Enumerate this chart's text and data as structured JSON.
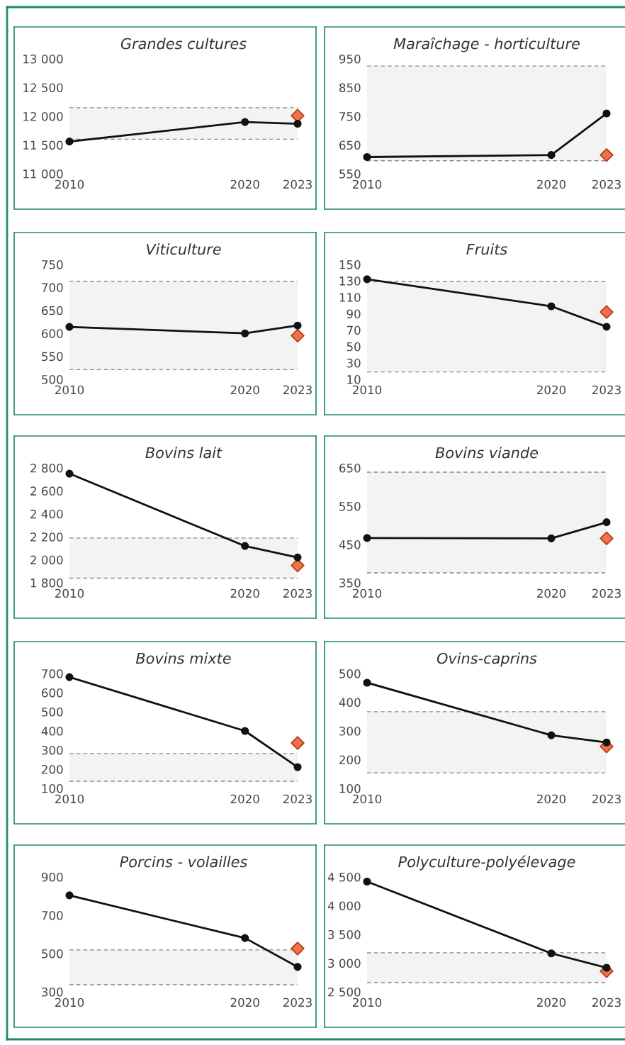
{
  "chart_data": [
    {
      "type": "line",
      "title": "Grandes cultures",
      "xticks": [
        2010,
        2020,
        2023
      ],
      "xlim": [
        2010,
        2023
      ],
      "ylim": [
        11000,
        13000
      ],
      "yticks": [
        {
          "value": 11000,
          "label": "11 000"
        },
        {
          "value": 11500,
          "label": "11 500"
        },
        {
          "value": 12000,
          "label": "12 000"
        },
        {
          "value": 12500,
          "label": "12 500"
        },
        {
          "value": 13000,
          "label": "13 000"
        }
      ],
      "series": [
        {
          "color": "#111111",
          "marker": "circle",
          "x": [
            2010,
            2020,
            2023
          ],
          "values": [
            11560,
            11900,
            11870
          ]
        },
        {
          "type": "scatter",
          "color": "#b5400f",
          "marker": "diamond",
          "x": [
            2023
          ],
          "values": [
            12010
          ]
        }
      ],
      "bands": [
        {
          "axis": "y",
          "from": 11600,
          "to": 12150,
          "color": "#f3f3f3"
        }
      ],
      "ref_lines": [
        {
          "axis": "y",
          "value": 11600,
          "color": "#888888",
          "line_style": "dashed"
        },
        {
          "axis": "y",
          "value": 12150,
          "color": "#888888",
          "line_style": "dashed"
        }
      ]
    },
    {
      "type": "line",
      "title": "Maraîchage - horticulture",
      "xticks": [
        2010,
        2020,
        2023
      ],
      "xlim": [
        2010,
        2023
      ],
      "ylim": [
        550,
        950
      ],
      "yticks": [
        550,
        650,
        750,
        850,
        950
      ],
      "series": [
        {
          "color": "#111111",
          "marker": "circle",
          "x": [
            2010,
            2020,
            2023
          ],
          "values": [
            608,
            615,
            760
          ]
        },
        {
          "type": "scatter",
          "color": "#b5400f",
          "marker": "diamond",
          "x": [
            2023
          ],
          "values": [
            615
          ]
        }
      ],
      "bands": [
        {
          "axis": "y",
          "from": 595,
          "to": 925,
          "color": "#f3f3f3"
        }
      ],
      "ref_lines": [
        {
          "axis": "y",
          "value": 595,
          "color": "#888888",
          "line_style": "dashed"
        },
        {
          "axis": "y",
          "value": 925,
          "color": "#888888",
          "line_style": "dashed"
        }
      ]
    },
    {
      "type": "line",
      "title": "Viticulture",
      "xticks": [
        2010,
        2020,
        2023
      ],
      "xlim": [
        2010,
        2023
      ],
      "ylim": [
        500,
        750
      ],
      "yticks": [
        500,
        550,
        600,
        650,
        700,
        750
      ],
      "series": [
        {
          "color": "#111111",
          "marker": "circle",
          "x": [
            2010,
            2020,
            2023
          ],
          "values": [
            614,
            600,
            617
          ]
        },
        {
          "type": "scatter",
          "color": "#b5400f",
          "marker": "diamond",
          "x": [
            2023
          ],
          "values": [
            595
          ]
        }
      ],
      "bands": [
        {
          "axis": "y",
          "from": 521,
          "to": 713,
          "color": "#f3f3f3"
        }
      ],
      "ref_lines": [
        {
          "axis": "y",
          "value": 521,
          "color": "#888888",
          "line_style": "dashed"
        },
        {
          "axis": "y",
          "value": 713,
          "color": "#888888",
          "line_style": "dashed"
        }
      ]
    },
    {
      "type": "line",
      "title": "Fruits",
      "xticks": [
        2010,
        2020,
        2023
      ],
      "xlim": [
        2010,
        2023
      ],
      "ylim": [
        10,
        150
      ],
      "yticks": [
        10,
        30,
        50,
        70,
        90,
        110,
        130,
        150
      ],
      "series": [
        {
          "color": "#111111",
          "marker": "circle",
          "x": [
            2010,
            2020,
            2023
          ],
          "values": [
            132,
            99,
            74
          ]
        },
        {
          "type": "scatter",
          "color": "#b5400f",
          "marker": "diamond",
          "x": [
            2023
          ],
          "values": [
            92
          ]
        }
      ],
      "bands": [
        {
          "axis": "y",
          "from": 19,
          "to": 129,
          "color": "#f3f3f3"
        }
      ],
      "ref_lines": [
        {
          "axis": "y",
          "value": 19,
          "color": "#888888",
          "line_style": "dashed"
        },
        {
          "axis": "y",
          "value": 129,
          "color": "#888888",
          "line_style": "dashed"
        }
      ]
    },
    {
      "type": "line",
      "title": "Bovins lait",
      "xticks": [
        2010,
        2020,
        2023
      ],
      "xlim": [
        2010,
        2023
      ],
      "ylim": [
        1800,
        2800
      ],
      "yticks": [
        {
          "value": 1800,
          "label": "1 800"
        },
        {
          "value": 2000,
          "label": "2 000"
        },
        {
          "value": 2200,
          "label": "2 200"
        },
        {
          "value": 2400,
          "label": "2 400"
        },
        {
          "value": 2600,
          "label": "2 600"
        },
        {
          "value": 2800,
          "label": "2 800"
        }
      ],
      "series": [
        {
          "color": "#111111",
          "marker": "circle",
          "x": [
            2010,
            2020,
            2023
          ],
          "values": [
            2750,
            2120,
            2020
          ]
        },
        {
          "type": "scatter",
          "color": "#b5400f",
          "marker": "diamond",
          "x": [
            2023
          ],
          "values": [
            1950
          ]
        }
      ],
      "bands": [
        {
          "axis": "y",
          "from": 1840,
          "to": 2190,
          "color": "#f3f3f3"
        }
      ],
      "ref_lines": [
        {
          "axis": "y",
          "value": 1840,
          "color": "#888888",
          "line_style": "dashed"
        },
        {
          "axis": "y",
          "value": 2190,
          "color": "#888888",
          "line_style": "dashed"
        }
      ]
    },
    {
      "type": "line",
      "title": "Bovins viande",
      "xticks": [
        2010,
        2020,
        2023
      ],
      "xlim": [
        2010,
        2023
      ],
      "ylim": [
        350,
        650
      ],
      "yticks": [
        350,
        450,
        550,
        650
      ],
      "series": [
        {
          "color": "#111111",
          "marker": "circle",
          "x": [
            2010,
            2020,
            2023
          ],
          "values": [
            467,
            466,
            508
          ]
        },
        {
          "type": "scatter",
          "color": "#b5400f",
          "marker": "diamond",
          "x": [
            2023
          ],
          "values": [
            466
          ]
        }
      ],
      "bands": [
        {
          "axis": "y",
          "from": 376,
          "to": 639,
          "color": "#f3f3f3"
        }
      ],
      "ref_lines": [
        {
          "axis": "y",
          "value": 376,
          "color": "#888888",
          "line_style": "dashed"
        },
        {
          "axis": "y",
          "value": 639,
          "color": "#888888",
          "line_style": "dashed"
        }
      ]
    },
    {
      "type": "line",
      "title": "Bovins mixte",
      "xticks": [
        2010,
        2020,
        2023
      ],
      "xlim": [
        2010,
        2023
      ],
      "ylim": [
        100,
        700
      ],
      "yticks": [
        100,
        200,
        300,
        400,
        500,
        600,
        700
      ],
      "series": [
        {
          "color": "#111111",
          "marker": "circle",
          "x": [
            2010,
            2020,
            2023
          ],
          "values": [
            681,
            400,
            211
          ]
        },
        {
          "type": "scatter",
          "color": "#b5400f",
          "marker": "diamond",
          "x": [
            2023
          ],
          "values": [
            337
          ]
        }
      ],
      "bands": [
        {
          "axis": "y",
          "from": 137,
          "to": 282,
          "color": "#f3f3f3"
        }
      ],
      "ref_lines": [
        {
          "axis": "y",
          "value": 137,
          "color": "#888888",
          "line_style": "dashed"
        },
        {
          "axis": "y",
          "value": 282,
          "color": "#888888",
          "line_style": "dashed"
        }
      ]
    },
    {
      "type": "line",
      "title": "Ovins-caprins",
      "xticks": [
        2010,
        2020,
        2023
      ],
      "xlim": [
        2010,
        2023
      ],
      "ylim": [
        100,
        500
      ],
      "yticks": [
        100,
        200,
        300,
        400,
        500
      ],
      "series": [
        {
          "color": "#111111",
          "marker": "circle",
          "x": [
            2010,
            2020,
            2023
          ],
          "values": [
            468,
            285,
            260
          ]
        },
        {
          "type": "scatter",
          "color": "#b5400f",
          "marker": "diamond",
          "x": [
            2023
          ],
          "values": [
            246
          ]
        }
      ],
      "bands": [
        {
          "axis": "y",
          "from": 154,
          "to": 367,
          "color": "#f3f3f3"
        }
      ],
      "ref_lines": [
        {
          "axis": "y",
          "value": 154,
          "color": "#888888",
          "line_style": "dashed"
        },
        {
          "axis": "y",
          "value": 367,
          "color": "#888888",
          "line_style": "dashed"
        }
      ]
    },
    {
      "type": "line",
      "title": "Porcins - volailles",
      "xticks": [
        2010,
        2020,
        2023
      ],
      "xlim": [
        2010,
        2023
      ],
      "ylim": [
        300,
        900
      ],
      "yticks": [
        300,
        500,
        700,
        900
      ],
      "series": [
        {
          "color": "#111111",
          "marker": "circle",
          "x": [
            2010,
            2020,
            2023
          ],
          "values": [
            804,
            581,
            430
          ]
        },
        {
          "type": "scatter",
          "color": "#b5400f",
          "marker": "diamond",
          "x": [
            2023
          ],
          "values": [
            526
          ]
        }
      ],
      "bands": [
        {
          "axis": "y",
          "from": 337,
          "to": 519,
          "color": "#f3f3f3"
        }
      ],
      "ref_lines": [
        {
          "axis": "y",
          "value": 337,
          "color": "#888888",
          "line_style": "dashed"
        },
        {
          "axis": "y",
          "value": 519,
          "color": "#888888",
          "line_style": "dashed"
        }
      ]
    },
    {
      "type": "line",
      "title": "Polyculture-polyélevage",
      "xticks": [
        2010,
        2020,
        2023
      ],
      "xlim": [
        2010,
        2023
      ],
      "ylim": [
        2500,
        4500
      ],
      "yticks": [
        {
          "value": 2500,
          "label": "2 500"
        },
        {
          "value": 3000,
          "label": "3 000"
        },
        {
          "value": 3500,
          "label": "3 500"
        },
        {
          "value": 4000,
          "label": "4 000"
        },
        {
          "value": 4500,
          "label": "4 500"
        }
      ],
      "series": [
        {
          "color": "#111111",
          "marker": "circle",
          "x": [
            2010,
            2020,
            2023
          ],
          "values": [
            4420,
            3170,
            2920
          ]
        },
        {
          "type": "scatter",
          "color": "#b5400f",
          "marker": "diamond",
          "x": [
            2023
          ],
          "values": [
            2860
          ]
        }
      ],
      "bands": [
        {
          "axis": "y",
          "from": 2660,
          "to": 3180,
          "color": "#f3f3f3"
        }
      ],
      "ref_lines": [
        {
          "axis": "y",
          "value": 2660,
          "color": "#888888",
          "line_style": "dashed"
        },
        {
          "axis": "y",
          "value": 3180,
          "color": "#888888",
          "line_style": "dashed"
        }
      ]
    }
  ]
}
